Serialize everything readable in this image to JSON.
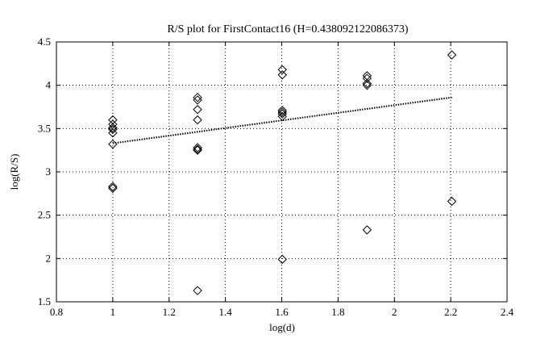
{
  "chart_data": {
    "type": "scatter",
    "title": "R/S plot for FirstContact16 (H=0.438092122086373)",
    "xlabel": "log(d)",
    "ylabel": "log(R/S)",
    "xlim": [
      0.8,
      2.4
    ],
    "ylim": [
      1.5,
      4.5
    ],
    "xticks": [
      0.8,
      1,
      1.2,
      1.4,
      1.6,
      1.8,
      2,
      2.2,
      2.4
    ],
    "yticks": [
      1.5,
      2,
      2.5,
      3,
      3.5,
      4,
      4.5
    ],
    "xtick_labels": [
      "0.8",
      "1",
      "1.2",
      "1.4",
      "1.6",
      "1.8",
      "2",
      "2.2",
      "2.4"
    ],
    "ytick_labels": [
      "1.5",
      "2",
      "2.5",
      "3",
      "3.5",
      "4",
      "4.5"
    ],
    "grid": true,
    "marker": "diamond",
    "marker_color": "#000000",
    "series": [
      {
        "x": [
          1.0,
          1.0,
          1.0,
          1.0,
          1.0,
          1.0,
          1.0,
          1.0,
          1.301,
          1.301,
          1.301,
          1.301,
          1.301,
          1.301,
          1.301,
          1.301,
          1.602,
          1.602,
          1.602,
          1.602,
          1.602,
          1.602,
          1.602,
          1.903,
          1.903,
          1.903,
          1.903,
          1.903,
          2.204,
          2.204
        ],
        "y": [
          3.6,
          3.55,
          3.51,
          3.49,
          3.45,
          3.32,
          2.83,
          2.81,
          3.86,
          3.83,
          3.72,
          3.6,
          3.28,
          3.26,
          3.25,
          1.63,
          4.18,
          4.12,
          3.71,
          3.69,
          3.67,
          3.64,
          1.99,
          4.11,
          4.08,
          4.02,
          4.0,
          2.33,
          4.35,
          2.66
        ]
      }
    ],
    "fit_line": {
      "style": "dotted",
      "x": [
        1.0,
        2.204
      ],
      "y": [
        3.33,
        3.86
      ]
    }
  }
}
